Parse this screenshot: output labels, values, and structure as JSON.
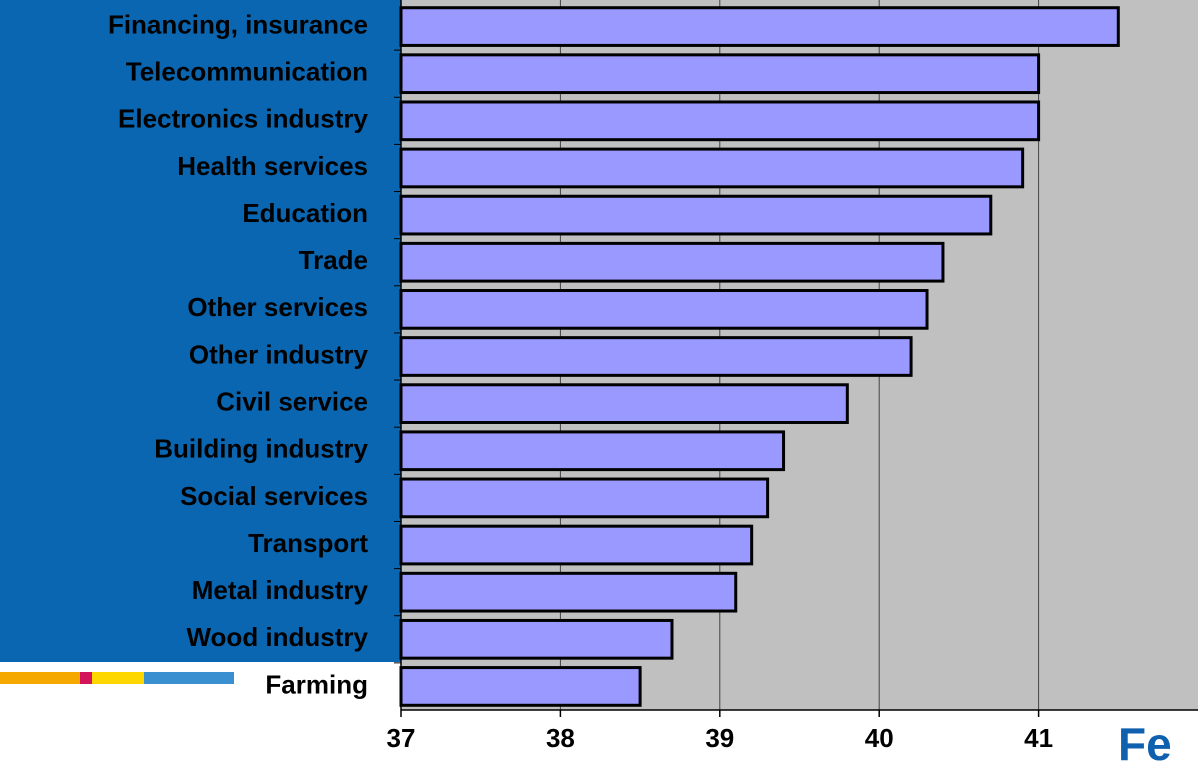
{
  "chart_data": {
    "type": "bar",
    "orientation": "horizontal",
    "categories": [
      "Financing, insurance",
      "Telecommunication",
      "Electronics industry",
      "Health services",
      "Education",
      "Trade",
      "Other  services",
      "Other industry",
      "Civil service",
      "Building industry",
      "Social services",
      "Transport",
      "Metal industry",
      "Wood industry",
      "Farming"
    ],
    "values": [
      41.5,
      41.0,
      41.0,
      40.9,
      40.7,
      40.4,
      40.3,
      40.2,
      39.8,
      39.4,
      39.3,
      39.2,
      39.1,
      38.7,
      38.5
    ],
    "color": "#9999ff",
    "xlim": [
      37,
      42
    ],
    "xticks": [
      37,
      38,
      39,
      40,
      41
    ],
    "grid": true
  },
  "logo_text": "Fe"
}
